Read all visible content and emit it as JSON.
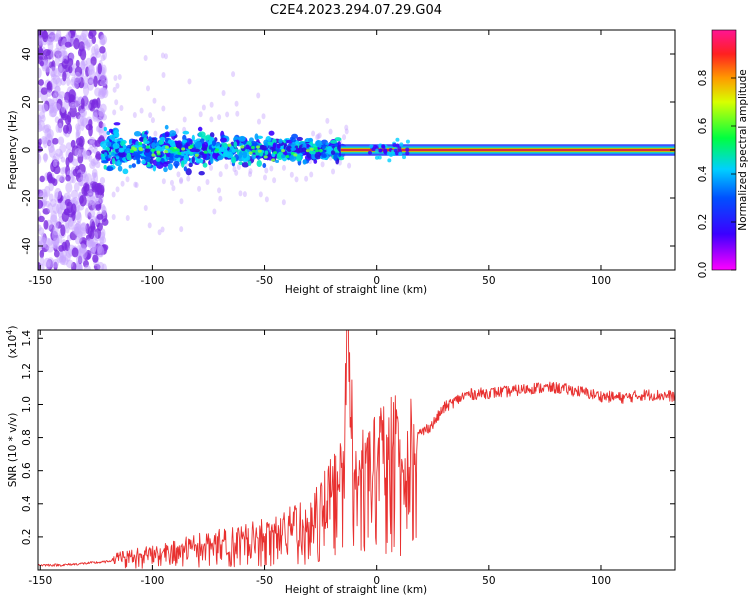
{
  "title": "C2E4.2023.294.07.29.G04",
  "colors": {
    "snr_line": "#e8302f",
    "band_core": "#d9283c",
    "band_edge": "#00c8e6",
    "scatter_purple": "#7a2be0",
    "scatter_light": "#c8a6ff"
  },
  "chart_data": [
    {
      "type": "heatmap",
      "title": "C2E4.2023.294.07.29.G04",
      "xlabel": "Height of straight line (km)",
      "ylabel": "Frequency (Hz)",
      "xlim": [
        -151,
        133
      ],
      "ylim": [
        -50,
        50
      ],
      "xticks": [
        -150,
        -100,
        -50,
        0,
        50,
        100
      ],
      "yticks": [
        -40,
        -20,
        0,
        20,
        40
      ],
      "grid": false,
      "description_of_content": "Spectral amplitude vs height: diffuse purple scatter below -120 km, broadening blue/cyan speckle between -120 and -15 km, narrow high-amplitude line at 0 Hz from about -15 km to 133 km",
      "colorbar": {
        "label": "Normalized spectral amplitude",
        "range": [
          0,
          1
        ],
        "ticks": [
          0.0,
          0.2,
          0.4,
          0.6,
          0.8
        ],
        "colormap": "rainbow (magenta-blue-cyan-green-yellow-red-pink)"
      }
    },
    {
      "type": "line",
      "xlabel": "Height of straight line (km)",
      "ylabel": "SNR (10 * v/v)",
      "yscale_label": "(x10^4)",
      "xlim": [
        -151,
        133
      ],
      "ylim": [
        0,
        1.45
      ],
      "xticks": [
        -150,
        -100,
        -50,
        0,
        50,
        100
      ],
      "yticks": [
        0.2,
        0.4,
        0.6,
        0.8,
        1.0,
        1.2,
        1.4
      ],
      "grid": false,
      "series": [
        {
          "x": [
            -151,
            -140,
            -130,
            -120,
            -115,
            -110,
            -100,
            -90,
            -80,
            -70,
            -60,
            -50,
            -40,
            -30,
            -25,
            -20,
            -15,
            -13,
            -10,
            -5,
            0,
            5,
            10,
            12,
            15,
            20,
            25,
            30,
            40,
            50,
            60,
            70,
            80,
            90,
            100,
            110,
            120,
            133
          ],
          "values": [
            0.03,
            0.03,
            0.04,
            0.05,
            0.08,
            0.09,
            0.11,
            0.13,
            0.16,
            0.18,
            0.2,
            0.23,
            0.27,
            0.33,
            0.4,
            0.5,
            0.6,
            1.42,
            0.55,
            0.65,
            0.72,
            0.76,
            0.82,
            0.45,
            0.78,
            0.83,
            0.88,
            0.98,
            1.06,
            1.07,
            1.08,
            1.1,
            1.1,
            1.08,
            1.05,
            1.04,
            1.06,
            1.05
          ]
        }
      ]
    }
  ],
  "axes_text": {
    "top": {
      "xlabel": "Height of straight line (km)",
      "ylabel": "Frequency (Hz)",
      "xticks": [
        "-150",
        "-100",
        "-50",
        "0",
        "50",
        "100"
      ],
      "yticks": [
        "40",
        "20",
        "0",
        "-20",
        "-40"
      ]
    },
    "colorbar": {
      "label": "Normalized spectral amplitude",
      "ticks": [
        "0.0",
        "0.2",
        "0.4",
        "0.6",
        "0.8"
      ]
    },
    "bottom": {
      "xlabel": "Height of straight line (km)",
      "ylabel": "SNR (10 * v/v)",
      "scale": "(x10",
      "scale_exp": "4",
      "scale_close": ")",
      "xticks": [
        "-150",
        "-100",
        "-50",
        "0",
        "50",
        "100"
      ],
      "yticks": [
        "1.4",
        "1.2",
        "1.0",
        "0.8",
        "0.6",
        "0.4",
        "0.2"
      ]
    }
  }
}
